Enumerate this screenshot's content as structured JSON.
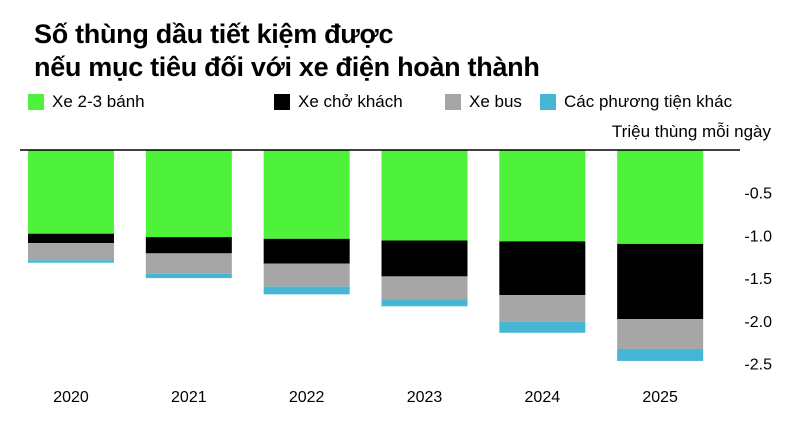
{
  "title_line1": "Số thùng dầu tiết kiệm được",
  "title_line2": "nếu mục tiêu đối với xe điện hoàn thành",
  "unit_label": "Triệu thùng mỗi ngày",
  "colors": {
    "two_three_wheelers": "#4ff23b",
    "passenger_cars": "#000000",
    "buses": "#a6a6a6",
    "other_vehicles": "#45b7d5"
  },
  "chart_data": {
    "type": "bar",
    "stacked": true,
    "title": "Số thùng dầu tiết kiệm được nếu mục tiêu đối với xe điện hoàn thành",
    "ylabel": "Triệu thùng mỗi ngày",
    "categories": [
      "2020",
      "2021",
      "2022",
      "2023",
      "2024",
      "2025"
    ],
    "series": [
      {
        "name": "Xe 2-3 bánh",
        "color": "#4ff23b",
        "values": [
          -0.98,
          -1.02,
          -1.04,
          -1.06,
          -1.07,
          -1.1
        ]
      },
      {
        "name": "Xe chở khách",
        "color": "#000000",
        "values": [
          -0.11,
          -0.19,
          -0.29,
          -0.42,
          -0.63,
          -0.88
        ]
      },
      {
        "name": "Xe bus",
        "color": "#a6a6a6",
        "values": [
          -0.2,
          -0.24,
          -0.27,
          -0.27,
          -0.31,
          -0.35
        ]
      },
      {
        "name": "Các phương tiện khác",
        "color": "#45b7d5",
        "values": [
          -0.03,
          -0.05,
          -0.09,
          -0.08,
          -0.13,
          -0.14
        ]
      }
    ],
    "yticks": [
      -0.5,
      -1.0,
      -1.5,
      -2.0,
      -2.5
    ],
    "ytick_labels": [
      "-0.5",
      "-1.0",
      "-1.5",
      "-2.0",
      "-2.5"
    ],
    "ylim": [
      -2.64,
      0
    ],
    "grid": false,
    "legend_position": "top"
  }
}
